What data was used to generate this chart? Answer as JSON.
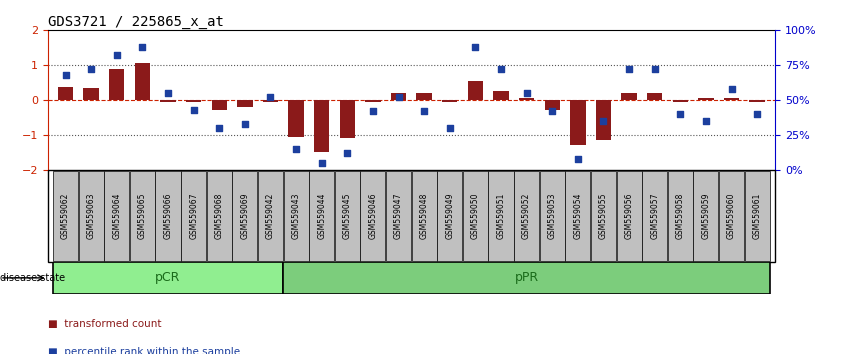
{
  "title": "GDS3721 / 225865_x_at",
  "categories": [
    "GSM559062",
    "GSM559063",
    "GSM559064",
    "GSM559065",
    "GSM559066",
    "GSM559067",
    "GSM559068",
    "GSM559069",
    "GSM559042",
    "GSM559043",
    "GSM559044",
    "GSM559045",
    "GSM559046",
    "GSM559047",
    "GSM559048",
    "GSM559049",
    "GSM559050",
    "GSM559051",
    "GSM559052",
    "GSM559053",
    "GSM559054",
    "GSM559055",
    "GSM559056",
    "GSM559057",
    "GSM559058",
    "GSM559059",
    "GSM559060",
    "GSM559061"
  ],
  "bar_values": [
    0.38,
    0.35,
    0.9,
    1.05,
    -0.05,
    -0.05,
    -0.3,
    -0.2,
    -0.05,
    -1.05,
    -1.5,
    -1.1,
    -0.05,
    0.2,
    0.2,
    -0.05,
    0.55,
    0.25,
    0.05,
    -0.3,
    -1.3,
    -1.15,
    0.2,
    0.2,
    -0.05,
    0.05,
    0.05,
    -0.05
  ],
  "percentile_values": [
    68,
    72,
    82,
    88,
    55,
    43,
    30,
    33,
    52,
    15,
    5,
    12,
    42,
    52,
    42,
    30,
    88,
    72,
    55,
    42,
    8,
    35,
    72,
    72,
    40,
    35,
    58,
    40
  ],
  "pCR_count": 9,
  "pPR_count": 19,
  "bar_color": "#8B1A1A",
  "dot_color": "#1C3F9E",
  "zero_line_color": "#CC2200",
  "dotted_line_color": "#555555",
  "pCR_color": "#90EE90",
  "pPR_color": "#7CCD7C",
  "group_label_color": "#1A6B1A",
  "axis_color_left": "#CC2200",
  "axis_color_right": "#0000CC",
  "bg_color": "#FFFFFF",
  "tick_area_color": "#C0C0C0"
}
